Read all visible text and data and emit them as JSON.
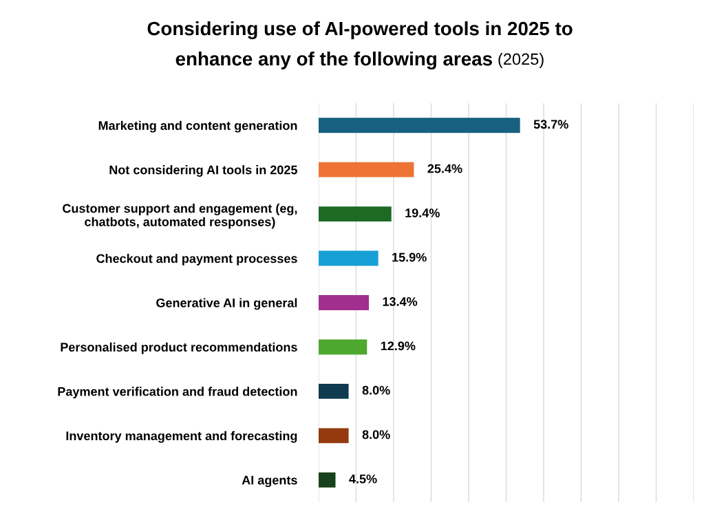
{
  "chart_data": {
    "type": "bar",
    "orientation": "horizontal",
    "title": "Considering use of AI-powered tools in 2025 to\nenhance any of the following areas",
    "subtitle": "(2025)",
    "categories": [
      "Marketing and content generation",
      "Not considering AI tools in 2025",
      "Customer support and engagement (eg,\nchatbots, automated responses)",
      "Checkout and payment processes",
      "Generative AI in general",
      "Personalised product recommendations",
      "Payment verification and fraud detection",
      "Inventory management and forecasting",
      "AI agents"
    ],
    "values": [
      53.7,
      25.4,
      19.4,
      15.9,
      13.4,
      12.9,
      8.0,
      8.0,
      4.5
    ],
    "value_labels": [
      "53.7%",
      "25.4%",
      "19.4%",
      "15.9%",
      "13.4%",
      "12.9%",
      "8.0%",
      "8.0%",
      "4.5%"
    ],
    "colors": [
      "#17607f",
      "#ed7435",
      "#1c6a24",
      "#17a0d6",
      "#a02f8e",
      "#4ea72e",
      "#0f3a50",
      "#953a0e",
      "#17421b"
    ],
    "xlim": [
      0,
      100
    ],
    "xticks": [
      0,
      10,
      20,
      30,
      40,
      50,
      60,
      70,
      80,
      90,
      100
    ],
    "tick_labels": false,
    "grid": "x",
    "legend": false
  }
}
